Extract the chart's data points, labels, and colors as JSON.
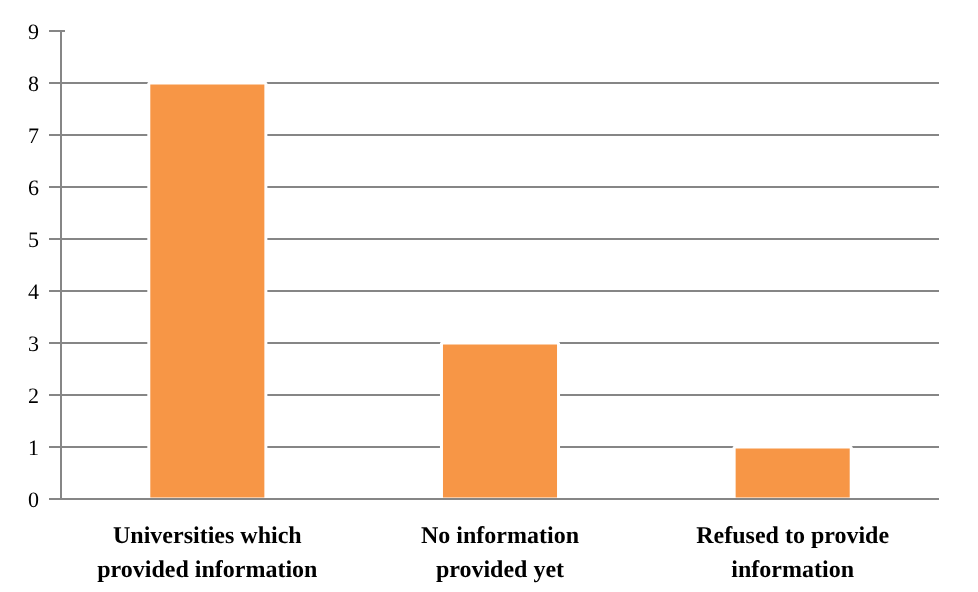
{
  "chart_data": {
    "type": "bar",
    "categories": [
      "Universities which provided information",
      "No information provided yet",
      "Refused to provide information"
    ],
    "values": [
      8,
      3,
      1
    ],
    "color": "#f79646",
    "ylim": [
      0,
      9
    ],
    "yticks": [
      0,
      1,
      2,
      3,
      4,
      5,
      6,
      7,
      8,
      9
    ],
    "grid": "y"
  }
}
